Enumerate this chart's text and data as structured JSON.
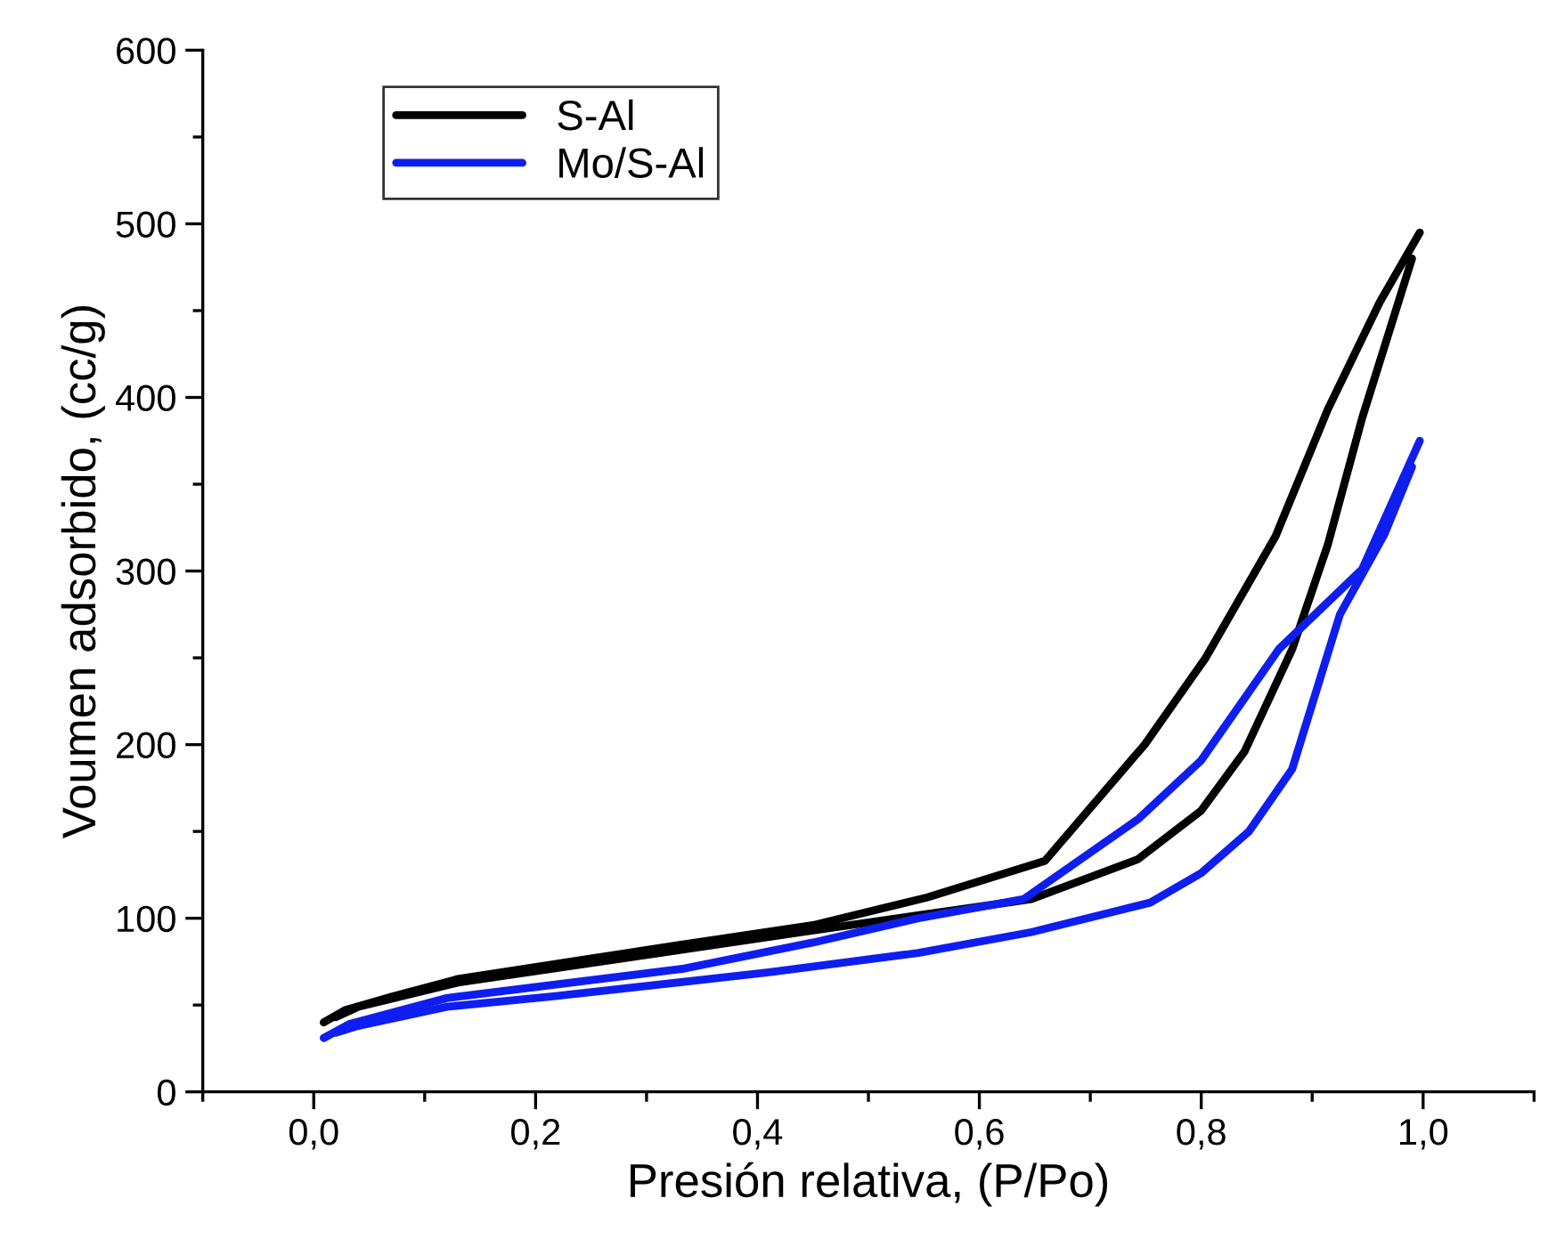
{
  "chart_data": {
    "type": "line",
    "xlabel": "Presión relativa, (P/Po)",
    "ylabel": "Voumen adsorbido, (cc/g)",
    "xlim": [
      -0.1,
      1.1
    ],
    "ylim": [
      0,
      600
    ],
    "xticks": [
      {
        "value": 0.0,
        "label": "0,0"
      },
      {
        "value": 0.2,
        "label": "0,2"
      },
      {
        "value": 0.4,
        "label": "0,4"
      },
      {
        "value": 0.6,
        "label": "0,6"
      },
      {
        "value": 0.8,
        "label": "0,8"
      },
      {
        "value": 1.0,
        "label": "1,0"
      }
    ],
    "yticks": [
      0,
      100,
      200,
      300,
      400,
      500,
      600
    ],
    "legend": "top left",
    "grid": false,
    "marker": "none",
    "line_style": "solid",
    "series": [
      {
        "name": "S-Al",
        "color": "#000000",
        "x": [
          0.009,
          0.028,
          0.071,
          0.13,
          0.334,
          0.45,
          0.553,
          0.659,
          0.749,
          0.804,
          0.867,
          0.914,
          0.961,
          0.997
        ],
        "values": [
          40,
          47,
          55,
          65,
          85,
          96,
          112,
          133,
          200,
          250,
          320,
          393,
          455,
          495
        ]
      },
      {
        "color": "#000000",
        "x": [
          0.02,
          0.04,
          0.13,
          0.45,
          0.647,
          0.743,
          0.8,
          0.839,
          0.882,
          0.914,
          0.945,
          0.99
        ],
        "values": [
          43,
          49,
          63,
          93,
          111,
          134,
          162,
          196,
          255,
          315,
          388,
          480
        ]
      },
      {
        "name": "Mo/S-Al",
        "color": "#0f1ef0",
        "x": [
          0.009,
          0.032,
          0.12,
          0.334,
          0.45,
          0.545,
          0.64,
          0.743,
          0.8,
          0.87,
          0.945,
          0.997
        ],
        "values": [
          31,
          39,
          54,
          71,
          86,
          100,
          111,
          157,
          191,
          255,
          301,
          375
        ]
      },
      {
        "color": "#0f1ef0",
        "x": [
          0.02,
          0.04,
          0.12,
          0.216,
          0.412,
          0.545,
          0.647,
          0.754,
          0.8,
          0.843,
          0.882,
          0.925,
          0.965,
          0.99
        ],
        "values": [
          34,
          38,
          49,
          55,
          69,
          80,
          92,
          109,
          126,
          150,
          186,
          275,
          321,
          360
        ]
      }
    ]
  }
}
